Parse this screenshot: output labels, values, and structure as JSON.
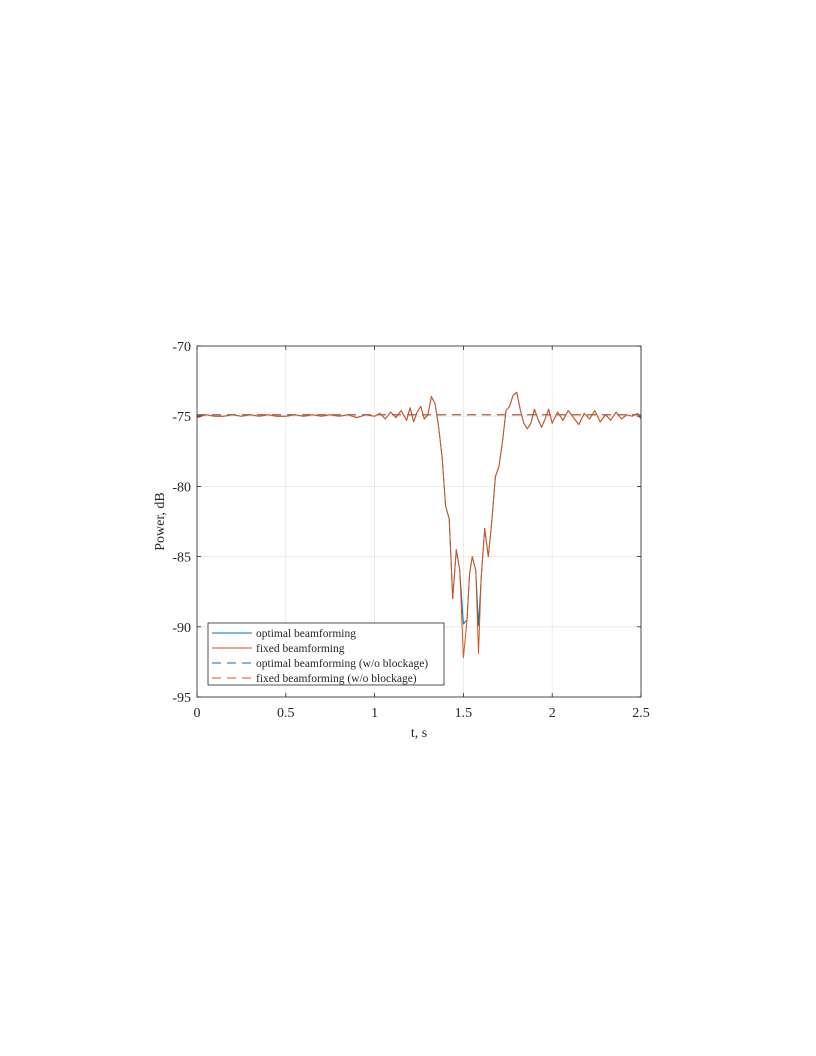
{
  "chart_data": {
    "type": "line",
    "title": "",
    "xlabel": "t, s",
    "ylabel": "Power, dB",
    "xlim": [
      0,
      2.5
    ],
    "ylim": [
      -95,
      -70
    ],
    "xticks": [
      0,
      0.5,
      1,
      1.5,
      2,
      2.5
    ],
    "xtick_labels": [
      "0",
      "0.5",
      "1",
      "1.5",
      "2",
      "2.5"
    ],
    "yticks": [
      -95,
      -90,
      -85,
      -80,
      -75,
      -70
    ],
    "ytick_labels": [
      "-95",
      "-90",
      "-85",
      "-80",
      "-75",
      "-70"
    ],
    "grid": true,
    "legend_position": "bottom-left",
    "colors": {
      "blue": "#0072BD",
      "orange": "#D95319",
      "grid": "#e6e6e6",
      "axis": "#262626"
    },
    "series": [
      {
        "name": "optimal beamforming",
        "color": "#0072BD",
        "dash": "solid",
        "x": [
          0,
          0.05,
          0.1,
          0.15,
          0.2,
          0.25,
          0.3,
          0.35,
          0.4,
          0.45,
          0.5,
          0.55,
          0.6,
          0.65,
          0.7,
          0.75,
          0.8,
          0.85,
          0.9,
          0.95,
          1.0,
          1.03,
          1.06,
          1.09,
          1.12,
          1.15,
          1.18,
          1.2,
          1.22,
          1.24,
          1.26,
          1.28,
          1.3,
          1.32,
          1.34,
          1.36,
          1.38,
          1.4,
          1.42,
          1.44,
          1.46,
          1.48,
          1.5,
          1.52,
          1.535,
          1.55,
          1.57,
          1.585,
          1.6,
          1.62,
          1.64,
          1.66,
          1.68,
          1.7,
          1.72,
          1.74,
          1.76,
          1.78,
          1.8,
          1.82,
          1.84,
          1.86,
          1.88,
          1.9,
          1.92,
          1.94,
          1.96,
          1.98,
          2.0,
          2.03,
          2.06,
          2.09,
          2.12,
          2.15,
          2.18,
          2.21,
          2.24,
          2.27,
          2.3,
          2.33,
          2.36,
          2.39,
          2.42,
          2.45,
          2.48,
          2.5
        ],
        "y": [
          -75.0,
          -74.9,
          -75.0,
          -75.0,
          -74.9,
          -75.0,
          -74.9,
          -75.0,
          -74.9,
          -75.0,
          -75.0,
          -74.9,
          -75.0,
          -74.9,
          -75.0,
          -74.9,
          -75.0,
          -74.9,
          -75.1,
          -74.9,
          -75.0,
          -74.8,
          -75.2,
          -74.7,
          -75.1,
          -74.6,
          -75.3,
          -74.4,
          -75.4,
          -74.7,
          -74.3,
          -75.2,
          -74.9,
          -73.6,
          -74.1,
          -75.7,
          -77.9,
          -81.4,
          -82.3,
          -88.0,
          -84.5,
          -86.0,
          -89.8,
          -89.5,
          -86.2,
          -85.0,
          -86.0,
          -89.9,
          -86.5,
          -83.0,
          -85.0,
          -82.5,
          -79.3,
          -78.6,
          -76.8,
          -74.6,
          -74.3,
          -73.5,
          -73.3,
          -74.5,
          -75.5,
          -75.9,
          -75.5,
          -74.5,
          -75.2,
          -75.8,
          -75.2,
          -74.5,
          -75.5,
          -74.7,
          -75.3,
          -74.6,
          -75.1,
          -75.6,
          -74.8,
          -75.2,
          -74.6,
          -75.4,
          -74.9,
          -75.3,
          -74.7,
          -75.2,
          -74.9,
          -75.0,
          -74.8,
          -75.2
        ]
      },
      {
        "name": "fixed beamforming",
        "color": "#D95319",
        "dash": "solid",
        "x": [
          0,
          0.05,
          0.1,
          0.15,
          0.2,
          0.25,
          0.3,
          0.35,
          0.4,
          0.45,
          0.5,
          0.55,
          0.6,
          0.65,
          0.7,
          0.75,
          0.8,
          0.85,
          0.9,
          0.95,
          1.0,
          1.03,
          1.06,
          1.09,
          1.12,
          1.15,
          1.18,
          1.2,
          1.22,
          1.24,
          1.26,
          1.28,
          1.3,
          1.32,
          1.34,
          1.36,
          1.38,
          1.4,
          1.42,
          1.44,
          1.46,
          1.48,
          1.5,
          1.52,
          1.535,
          1.55,
          1.57,
          1.585,
          1.6,
          1.62,
          1.64,
          1.66,
          1.68,
          1.7,
          1.72,
          1.74,
          1.76,
          1.78,
          1.8,
          1.82,
          1.84,
          1.86,
          1.88,
          1.9,
          1.92,
          1.94,
          1.96,
          1.98,
          2.0,
          2.03,
          2.06,
          2.09,
          2.12,
          2.15,
          2.18,
          2.21,
          2.24,
          2.27,
          2.3,
          2.33,
          2.36,
          2.39,
          2.42,
          2.45,
          2.48,
          2.5
        ],
        "y": [
          -75.1,
          -74.9,
          -75.0,
          -75.0,
          -74.9,
          -75.0,
          -74.9,
          -75.0,
          -74.9,
          -75.0,
          -75.0,
          -74.9,
          -75.0,
          -74.9,
          -75.0,
          -74.9,
          -75.0,
          -74.9,
          -75.1,
          -74.9,
          -75.0,
          -74.8,
          -75.2,
          -74.7,
          -75.1,
          -74.6,
          -75.3,
          -74.4,
          -75.4,
          -74.7,
          -74.3,
          -75.2,
          -74.9,
          -73.6,
          -74.1,
          -75.7,
          -77.9,
          -81.4,
          -82.3,
          -88.0,
          -84.5,
          -86.0,
          -92.2,
          -89.5,
          -86.2,
          -85.0,
          -86.0,
          -91.9,
          -86.5,
          -83.0,
          -85.0,
          -82.5,
          -79.3,
          -78.6,
          -76.8,
          -74.6,
          -74.3,
          -73.5,
          -73.3,
          -74.5,
          -75.5,
          -75.9,
          -75.5,
          -74.5,
          -75.2,
          -75.8,
          -75.2,
          -74.5,
          -75.5,
          -74.7,
          -75.3,
          -74.6,
          -75.1,
          -75.6,
          -74.8,
          -75.2,
          -74.6,
          -75.4,
          -74.9,
          -75.3,
          -74.7,
          -75.2,
          -74.9,
          -75.0,
          -74.8,
          -75.2
        ]
      },
      {
        "name": "optimal beamforming (w/o blockage)",
        "color": "#0072BD",
        "dash": "dashed",
        "x": [
          0,
          2.5
        ],
        "y": [
          -74.9,
          -74.9
        ]
      },
      {
        "name": "fixed beamforming (w/o  blockage)",
        "color": "#D95319",
        "dash": "dashed",
        "x": [
          0,
          2.5
        ],
        "y": [
          -74.9,
          -74.9
        ]
      }
    ]
  }
}
